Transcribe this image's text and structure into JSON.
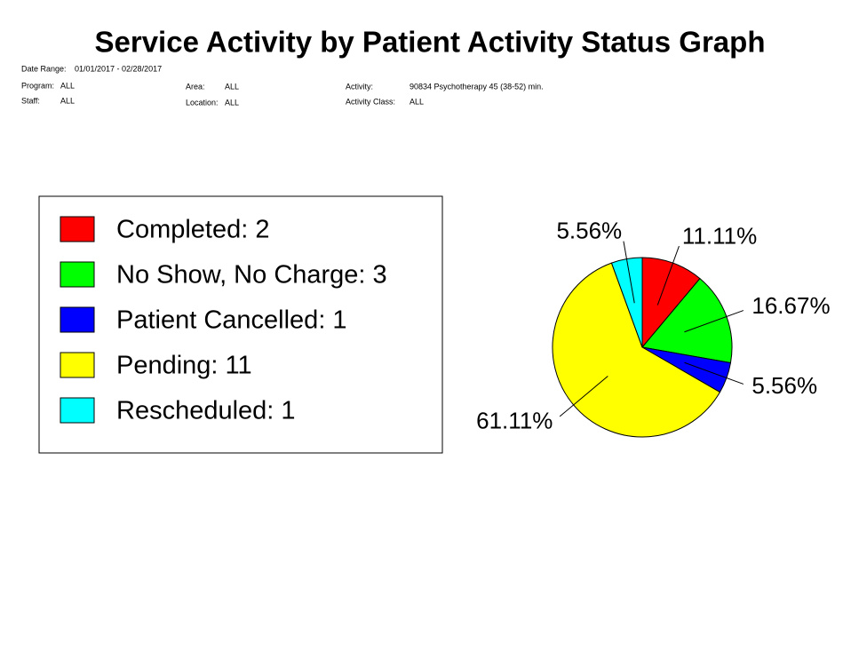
{
  "report": {
    "date_range_label": "Date Range:",
    "date_range": "01/01/2017 - 02/28/2017",
    "program_label": "Program:",
    "program": "ALL",
    "staff_label": "Staff:",
    "staff": "ALL",
    "area_label": "Area:",
    "area": "ALL",
    "location_label": "Location:",
    "location": "ALL",
    "activity_label": "Activity:",
    "activity": "90834 Psychotherapy 45 (38-52) min.",
    "activity_class_label": "Activity Class:",
    "activity_class": "ALL"
  },
  "chart_data": {
    "type": "pie",
    "title": "Service Activity by Patient Activity Status Graph",
    "categories": [
      "Completed: 2",
      "No Show, No Charge: 3",
      "Patient Cancelled: 1",
      "Pending: 11",
      "Rescheduled: 1"
    ],
    "values": [
      11.11,
      16.67,
      5.56,
      61.11,
      5.56
    ],
    "value_labels": [
      "11.11%",
      "16.67%",
      "5.56%",
      "61.11%",
      "5.56%"
    ],
    "colors": [
      "#ff0000",
      "#00ff00",
      "#0000ff",
      "#ffff00",
      "#00ffff"
    ],
    "legend": "left"
  }
}
